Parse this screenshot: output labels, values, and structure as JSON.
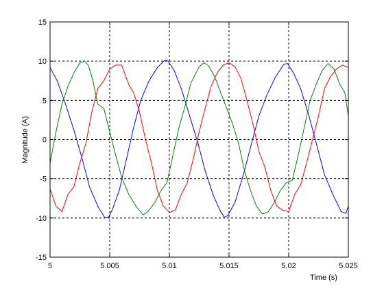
{
  "chart_data": {
    "type": "line",
    "title": "",
    "xlabel": "Time (s)",
    "ylabel": "Magnitude (A)",
    "xlim": [
      5,
      5.025
    ],
    "ylim": [
      -15,
      15
    ],
    "xticks": [
      5,
      5.005,
      5.01,
      5.015,
      5.02,
      5.025
    ],
    "xtick_labels": [
      "5",
      "5.005",
      "5.01",
      "5.015",
      "5.02",
      "5.025"
    ],
    "yticks": [
      -15,
      -10,
      -5,
      0,
      5,
      10,
      15
    ],
    "ytick_labels": [
      "-15",
      "-10",
      "-5",
      "0",
      "5",
      "10",
      "15"
    ],
    "grid": true,
    "grid_style": "dashed",
    "legend": "none",
    "series": [
      {
        "color": "#0000ff",
        "x": [
          5.0,
          5.0006,
          5.0013,
          5.002,
          5.0027,
          5.0033,
          5.004,
          5.0046,
          5.0049,
          5.0052,
          5.0058,
          5.0064,
          5.007,
          5.0076,
          5.0083,
          5.009,
          5.0096,
          5.0099,
          5.0104,
          5.011,
          5.0117,
          5.0124,
          5.013,
          5.0137,
          5.0143,
          5.0146,
          5.0149,
          5.0155,
          5.0162,
          5.0168,
          5.0175,
          5.0182,
          5.0189,
          5.0196,
          5.0199,
          5.0204,
          5.021,
          5.0217,
          5.0224,
          5.023,
          5.0237,
          5.0244,
          5.0248,
          5.025
        ],
        "y": [
          9.2,
          7.5,
          4.5,
          1.2,
          -2.5,
          -6.0,
          -8.5,
          -10.0,
          -9.9,
          -9.0,
          -6.5,
          -2.5,
          1.5,
          5.0,
          7.5,
          9.2,
          10.1,
          10.0,
          8.8,
          6.5,
          3.0,
          -0.5,
          -4.0,
          -7.2,
          -9.2,
          -9.9,
          -9.7,
          -8.0,
          -4.5,
          -1.0,
          3.0,
          5.8,
          8.0,
          9.6,
          9.7,
          8.5,
          6.5,
          3.0,
          -1.0,
          -4.5,
          -7.0,
          -9.2,
          -9.4,
          -8.5
        ]
      },
      {
        "color": "#008000",
        "x": [
          5.0,
          5.0005,
          5.001,
          5.0015,
          5.002,
          5.0025,
          5.0029,
          5.0032,
          5.0036,
          5.004,
          5.0045,
          5.005,
          5.0055,
          5.006,
          5.0066,
          5.0072,
          5.0078,
          5.0082,
          5.0088,
          5.0093,
          5.0098,
          5.0103,
          5.0108,
          5.0113,
          5.0118,
          5.0125,
          5.0129,
          5.0133,
          5.0138,
          5.0143,
          5.0148,
          5.0153,
          5.0158,
          5.0163,
          5.0168,
          5.0173,
          5.0178,
          5.0183,
          5.0188,
          5.0193,
          5.0198,
          5.0203,
          5.0208,
          5.0213,
          5.0218,
          5.0223,
          5.0228,
          5.0233,
          5.0238,
          5.0243,
          5.0247,
          5.025
        ],
        "y": [
          -3.0,
          1.0,
          4.5,
          6.8,
          8.5,
          9.8,
          10.0,
          9.5,
          7.5,
          4.5,
          4.0,
          1.0,
          -2.0,
          -4.8,
          -7.0,
          -8.5,
          -9.6,
          -9.2,
          -8.0,
          -6.5,
          -5.5,
          -2.0,
          1.5,
          4.2,
          7.2,
          9.3,
          9.8,
          9.4,
          8.0,
          6.0,
          4.0,
          2.0,
          -0.5,
          -4.0,
          -6.5,
          -8.5,
          -9.5,
          -9.2,
          -8.0,
          -6.5,
          -5.5,
          -5.2,
          -2.0,
          1.5,
          5.0,
          7.0,
          8.8,
          9.7,
          9.0,
          7.0,
          6.0,
          3.0
        ]
      },
      {
        "color": "#ff0000",
        "x": [
          5.0,
          5.0005,
          5.001,
          5.0015,
          5.002,
          5.0025,
          5.003,
          5.0035,
          5.004,
          5.0045,
          5.005,
          5.0055,
          5.006,
          5.0066,
          5.007,
          5.0075,
          5.008,
          5.0085,
          5.009,
          5.0095,
          5.01,
          5.0105,
          5.011,
          5.0115,
          5.012,
          5.0125,
          5.013,
          5.0135,
          5.014,
          5.0145,
          5.015,
          5.0155,
          5.016,
          5.0165,
          5.017,
          5.0175,
          5.018,
          5.0185,
          5.019,
          5.0195,
          5.02,
          5.0205,
          5.021,
          5.0215,
          5.022,
          5.0225,
          5.023,
          5.0235,
          5.024,
          5.0245,
          5.025
        ],
        "y": [
          -6.3,
          -8.5,
          -9.2,
          -7.0,
          -6.0,
          -3.0,
          -0.5,
          3.5,
          6.5,
          7.5,
          9.0,
          9.5,
          9.5,
          7.0,
          6.0,
          3.5,
          0.0,
          -3.0,
          -6.5,
          -8.5,
          -9.3,
          -9.0,
          -7.0,
          -5.5,
          -2.5,
          1.0,
          4.0,
          6.8,
          8.5,
          9.5,
          9.8,
          9.3,
          7.8,
          5.0,
          2.0,
          -1.5,
          -3.5,
          -6.5,
          -8.5,
          -9.0,
          -9.2,
          -7.0,
          -5.8,
          -3.0,
          0.0,
          3.0,
          6.5,
          8.0,
          9.0,
          9.5,
          9.2
        ]
      }
    ]
  }
}
